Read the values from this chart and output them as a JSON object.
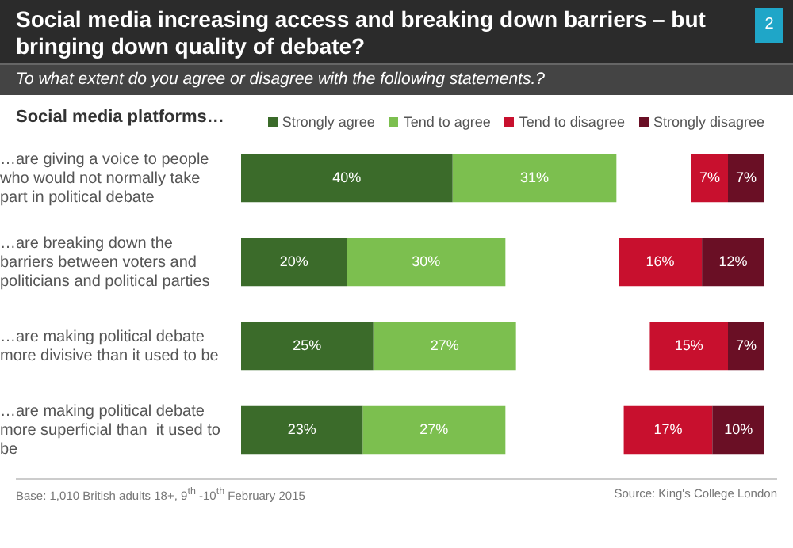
{
  "chart_data": [
    {
      "type": "bar",
      "orientation": "horizontal",
      "stacked": true,
      "title": "Social media increasing access and breaking down barriers – but bringing down quality of debate?",
      "subtitle": "To what extent do you agree or disagree with the following statements.?",
      "ylabel": "Social media platforms…",
      "categories": [
        "…are giving a voice to people who would not normally take part in political debate",
        "…are breaking down the barriers between voters and politicians and political parties",
        "…are making political debate more divisive than it used to be",
        "…are making political debate more superficial than  it used to be"
      ],
      "series": [
        {
          "name": "Strongly agree",
          "color": "#3b6b2a",
          "values": [
            40,
            20,
            25,
            23
          ],
          "value_labels": [
            "40%",
            "20%",
            "25%",
            "23%"
          ]
        },
        {
          "name": "Tend to agree",
          "color": "#7cbf4f",
          "values": [
            31,
            30,
            27,
            27
          ],
          "value_labels": [
            "31%",
            "30%",
            "27%",
            "27%"
          ]
        }
      ],
      "xlim": [
        0,
        72
      ],
      "legend": "top",
      "annotations": [
        "2",
        "Base: 1,010 British adults 18+, 9$^{th}$ -10$^{th}$ February 2015",
        "Source: King's College London"
      ]
    },
    {
      "type": "bar",
      "orientation": "horizontal",
      "stacked": true,
      "categories": [
        null,
        null,
        null,
        null
      ],
      "series": [
        {
          "name": "Strongly disagree",
          "color": "#6a0f25",
          "values": [
            7,
            12,
            7,
            10
          ],
          "value_labels": [
            "7%",
            "12%",
            "7%",
            "10%"
          ]
        },
        {
          "name": "Tend to disagree",
          "color": "#c8102e",
          "values": [
            7,
            16,
            15,
            17
          ],
          "value_labels": [
            "7%",
            "16%",
            "15%",
            "17%"
          ]
        }
      ],
      "xlim": [
        28,
        0
      ],
      "tick_labels": false,
      "legend": "top"
    }
  ]
}
